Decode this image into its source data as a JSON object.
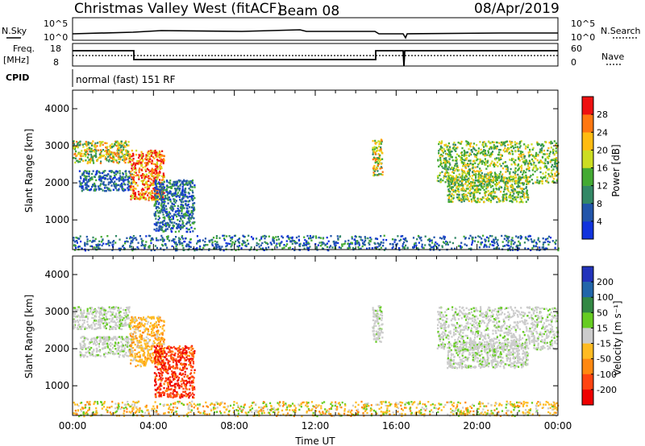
{
  "header": {
    "title": "Christmas Valley West (fitACF)",
    "beam": "Beam 08",
    "date": "08/Apr/2019"
  },
  "strip": {
    "nsky_label": "N.Sky",
    "nsearch_label": "N.Search",
    "nsky_ticks": [
      "10^5",
      "10^0"
    ],
    "nsearch_ticks": [
      "10^5",
      "10^0"
    ],
    "freq_label_line1": "Freq.",
    "freq_label_line2": "[MHz]",
    "freq_ticks": [
      "18",
      "8"
    ],
    "nave_label": "Nave",
    "nave_ticks": [
      "60",
      "0"
    ],
    "cpid_label": "CPID",
    "cpid_text": "normal (fast) 151 RF"
  },
  "chart_data": [
    {
      "type": "heatmap",
      "quantity": "power",
      "xlabel": "",
      "ylabel": "Slant Range [km]",
      "y_ticks": [
        "1000",
        "2000",
        "3000",
        "4000"
      ],
      "ylim": [
        200,
        4500
      ],
      "colorbar_label": "Power [dB]",
      "colorbar_ticks": [
        "4",
        "8",
        "12",
        "16",
        "20",
        "24",
        "28"
      ],
      "colorbar_colors": [
        "#1133dd",
        "#2255aa",
        "#338866",
        "#44aa33",
        "#ccdd22",
        "#ffbb11",
        "#ff7711",
        "#ee1111"
      ],
      "regions": [
        {
          "x_start": 0.0,
          "x_end": 2.8,
          "range_start": 2550,
          "range_end": 3150,
          "level": "high"
        },
        {
          "x_start": 0.3,
          "x_end": 2.9,
          "range_start": 1800,
          "range_end": 2350,
          "level": "low"
        },
        {
          "x_start": 2.8,
          "x_end": 4.5,
          "range_start": 1550,
          "range_end": 2900,
          "level": "very high"
        },
        {
          "x_start": 4.0,
          "x_end": 6.0,
          "range_start": 700,
          "range_end": 2100,
          "level": "low"
        },
        {
          "x_start": 14.8,
          "x_end": 15.3,
          "range_start": 2200,
          "range_end": 3200,
          "level": "high"
        },
        {
          "x_start": 18.0,
          "x_end": 24.0,
          "range_start": 2000,
          "range_end": 3150,
          "level": "medium"
        },
        {
          "x_start": 18.5,
          "x_end": 22.5,
          "range_start": 1500,
          "range_end": 2200,
          "level": "medium"
        },
        {
          "x_start": 0.0,
          "x_end": 24.0,
          "range_start": 200,
          "range_end": 600,
          "level": "low"
        }
      ]
    },
    {
      "type": "heatmap",
      "quantity": "velocity",
      "xlabel": "Time UT",
      "ylabel": "Slant Range [km]",
      "y_ticks": [
        "1000",
        "2000",
        "3000",
        "4000"
      ],
      "ylim": [
        200,
        4500
      ],
      "x_ticks": [
        "00:00",
        "04:00",
        "08:00",
        "12:00",
        "16:00",
        "20:00",
        "00:00"
      ],
      "xlim": [
        0,
        24
      ],
      "colorbar_label": "Velocity [m s⁻¹]",
      "colorbar_ticks": [
        "200",
        "100",
        "50",
        "15",
        "-15",
        "-50",
        "-100",
        "-200"
      ],
      "colorbar_colors": [
        "#2233bb",
        "#2266aa",
        "#338844",
        "#66cc22",
        "#cccccc",
        "#ffbb22",
        "#ff8811",
        "#ff4411",
        "#ee0000"
      ],
      "regions": [
        {
          "x_start": 0.0,
          "x_end": 2.8,
          "range_start": 2550,
          "range_end": 3150,
          "velocity_band": "-15 to 15"
        },
        {
          "x_start": 0.3,
          "x_end": 2.9,
          "range_start": 1800,
          "range_end": 2350,
          "velocity_band": "-15 to 15"
        },
        {
          "x_start": 2.8,
          "x_end": 4.5,
          "range_start": 1550,
          "range_end": 2900,
          "velocity_band": "-50 to -15"
        },
        {
          "x_start": 4.0,
          "x_end": 6.0,
          "range_start": 700,
          "range_end": 2100,
          "velocity_band": "-200 to -100"
        },
        {
          "x_start": 14.8,
          "x_end": 15.3,
          "range_start": 2200,
          "range_end": 3200,
          "velocity_band": "-15 to 15"
        },
        {
          "x_start": 18.0,
          "x_end": 24.0,
          "range_start": 2000,
          "range_end": 3150,
          "velocity_band": "-15 to 15"
        },
        {
          "x_start": 18.5,
          "x_end": 22.5,
          "range_start": 1500,
          "range_end": 2200,
          "velocity_band": "-15 to 15"
        },
        {
          "x_start": 0.0,
          "x_end": 24.0,
          "range_start": 200,
          "range_end": 600,
          "velocity_band": "-50 to 15"
        }
      ]
    }
  ]
}
